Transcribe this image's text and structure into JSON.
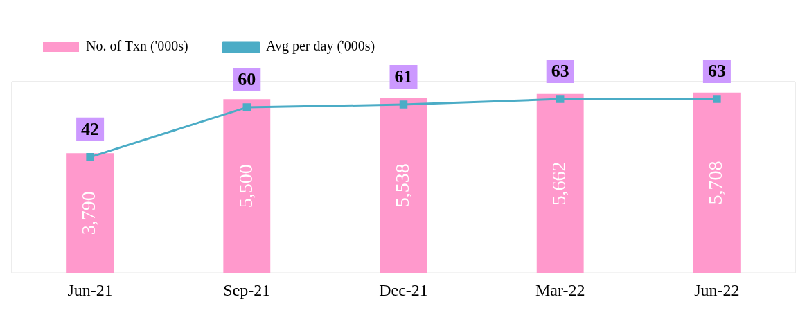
{
  "chart_data": {
    "type": "bar",
    "categories": [
      "Jun-21",
      "Sep-21",
      "Dec-21",
      "Mar-22",
      "Jun-22"
    ],
    "legend": "top left",
    "grid": false,
    "tick_labels": "x",
    "series": [
      {
        "name": "No. of Txn ('000s)",
        "color": "#ff99cc",
        "values": [
          3790,
          5500,
          5538,
          5662,
          5708
        ],
        "value_labels": [
          "3,790",
          "5,500",
          "5,538",
          "5,662",
          "5,708"
        ]
      },
      {
        "name": "Avg per day ('000s)",
        "type": "line",
        "axis": "y2",
        "color": "#4bacc6",
        "marker": "square",
        "values": [
          42,
          60,
          61,
          63,
          63
        ],
        "value_labels": [
          "42",
          "60",
          "61",
          "63",
          "63"
        ]
      }
    ]
  }
}
